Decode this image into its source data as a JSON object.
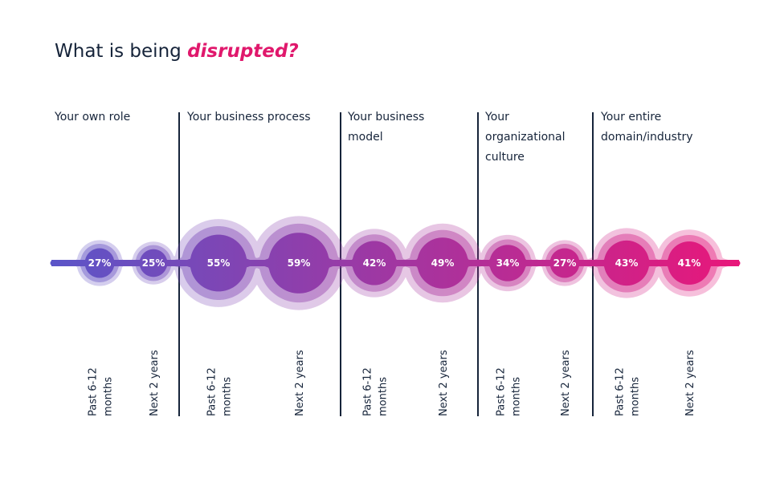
{
  "title": {
    "prefix": "What is being ",
    "accent": "disrupted?"
  },
  "colors": {
    "title_text": "#16243a",
    "accent": "#e0186c",
    "gradient_start": "#5b55c8",
    "gradient_end": "#e8177a",
    "divider": "#16243a",
    "label_text": "#ffffff"
  },
  "chart_data": {
    "type": "bubble",
    "groups": [
      {
        "name": "Your own role",
        "name_lines": [
          "Your own role"
        ]
      },
      {
        "name": "Your business process",
        "name_lines": [
          "Your business process"
        ]
      },
      {
        "name": "Your business model",
        "name_lines": [
          "Your business",
          "model"
        ]
      },
      {
        "name": "Your organizational culture",
        "name_lines": [
          "Your",
          "organizational",
          "culture"
        ]
      },
      {
        "name": "Your entire domain/industry",
        "name_lines": [
          "Your entire",
          "domain/industry"
        ]
      }
    ],
    "period_labels": {
      "past": [
        "Past 6-12",
        "months"
      ],
      "next": [
        "Next 2 years"
      ]
    },
    "values": [
      {
        "group": "Your own role",
        "past": 27,
        "next": 25
      },
      {
        "group": "Your business process",
        "past": 55,
        "next": 59
      },
      {
        "group": "Your business model",
        "past": 42,
        "next": 49
      },
      {
        "group": "Your organizational culture",
        "past": 34,
        "next": 27
      },
      {
        "group": "Your entire domain/industry",
        "past": 43,
        "next": 41
      }
    ],
    "unit": "%"
  }
}
